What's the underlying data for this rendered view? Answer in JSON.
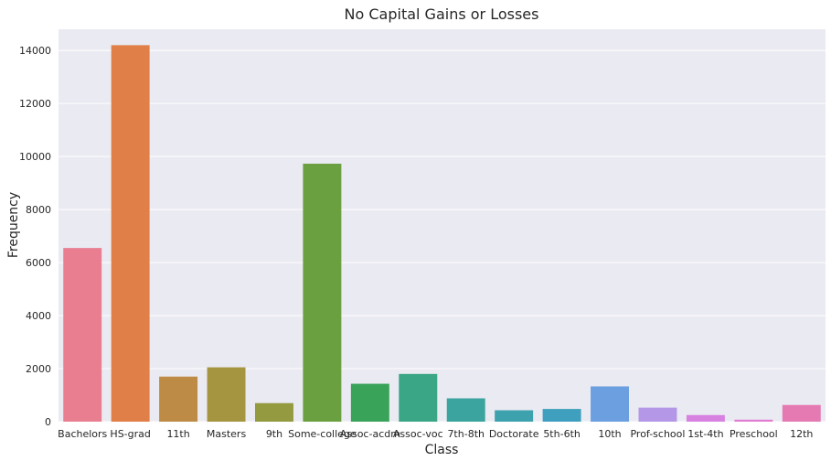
{
  "chart_data": {
    "type": "bar",
    "title": "No Capital Gains or Losses",
    "xlabel": "Class",
    "ylabel": "Frequency",
    "ylim": [
      0,
      14800
    ],
    "yticks": [
      0,
      2000,
      4000,
      6000,
      8000,
      10000,
      12000,
      14000
    ],
    "grid": true,
    "categories": [
      "Bachelors",
      "HS-grad",
      "11th",
      "Masters",
      "9th",
      "Some-college",
      "Assoc-acdm",
      "Assoc-voc",
      "7th-8th",
      "Doctorate",
      "5th-6th",
      "10th",
      "Prof-school",
      "1st-4th",
      "Preschool",
      "12th"
    ],
    "values": [
      6550,
      14200,
      1700,
      2050,
      700,
      9730,
      1430,
      1800,
      880,
      430,
      480,
      1330,
      530,
      250,
      75,
      630
    ],
    "colors": [
      "#e87e90",
      "#e07f47",
      "#bd8b46",
      "#a69540",
      "#939a3f",
      "#6aa040",
      "#3aa35a",
      "#3aa686",
      "#3ba49e",
      "#3da1ae",
      "#3f9fbe",
      "#6b9fe0",
      "#b497e6",
      "#d782e0",
      "#e27cd2",
      "#e57ab2"
    ],
    "background": "#eaeaf2",
    "grid_color": "#ffffff"
  }
}
